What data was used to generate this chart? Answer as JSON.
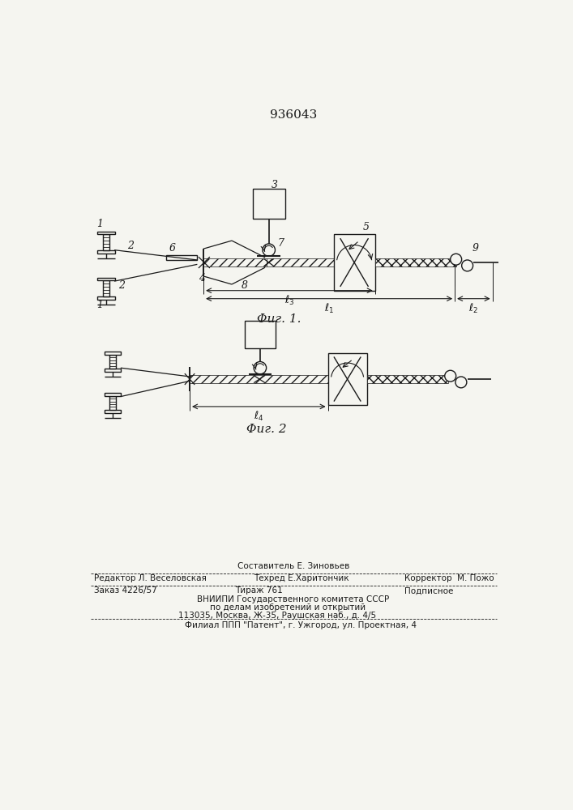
{
  "title": "936043",
  "bg_color": "#f5f5f0",
  "line_color": "#1a1a1a",
  "fig1_caption": "Φиг. 1.",
  "fig2_caption": "Φиг. 2",
  "footer_line0_center": "Составитель Е. Зиновьев",
  "footer_line1_left": "Редактор Л. Веселовская",
  "footer_line1_center": "Техред Е.Харитончик",
  "footer_line1_right": "Корректор  М. Пожо",
  "footer_line2_left": "Заказ 4226/57",
  "footer_line2_center": "Тираж 761",
  "footer_line2_right": "Подписное",
  "footer_line3": "ВНИИПИ Государственного комитета СССР",
  "footer_line4": "по делам изобретений и открытий",
  "footer_line5": "113035, Москва, Ж-35, Раушская наб., д. 4/5",
  "footer_line6": "Филиал ППП \"Патент\", г. Ужгород, ул. Проектная, 4"
}
